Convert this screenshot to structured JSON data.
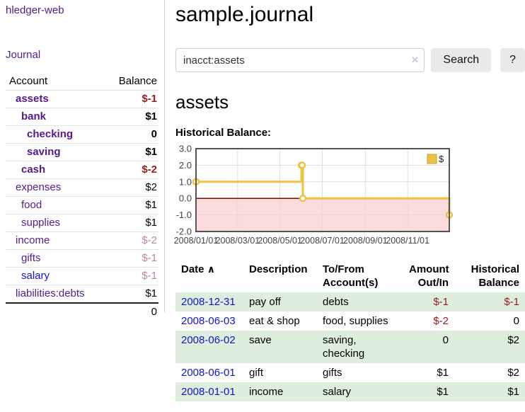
{
  "sidebar": {
    "app_title": "hledger-web",
    "journal_link": "Journal",
    "accounts": {
      "header_account": "Account",
      "header_balance": "Balance",
      "rows": [
        {
          "name": "assets",
          "indent": 1,
          "bold": true,
          "balance": "$-1",
          "neg": "strong"
        },
        {
          "name": "bank",
          "indent": 2,
          "bold": true,
          "balance": "$1",
          "neg": "none"
        },
        {
          "name": "checking",
          "indent": 3,
          "bold": true,
          "balance": "0",
          "neg": "none"
        },
        {
          "name": "saving",
          "indent": 3,
          "bold": true,
          "balance": "$1",
          "neg": "none"
        },
        {
          "name": "cash",
          "indent": 2,
          "bold": true,
          "balance": "$-2",
          "neg": "strong"
        },
        {
          "name": "expenses",
          "indent": 1,
          "bold": false,
          "balance": "$2",
          "neg": "none"
        },
        {
          "name": "food",
          "indent": 2,
          "bold": false,
          "balance": "$1",
          "neg": "none"
        },
        {
          "name": "supplies",
          "indent": 2,
          "bold": false,
          "balance": "$1",
          "neg": "none"
        },
        {
          "name": "income",
          "indent": 1,
          "bold": false,
          "balance": "$-2",
          "neg": "faded"
        },
        {
          "name": "gifts",
          "indent": 2,
          "bold": false,
          "balance": "$-1",
          "neg": "faded"
        },
        {
          "name": "salary",
          "indent": 2,
          "bold": false,
          "balance": "$-1",
          "neg": "faded",
          "link_color": "blue"
        },
        {
          "name": "liabilities:debts",
          "indent": 1,
          "bold": false,
          "balance": "$1",
          "neg": "none"
        }
      ],
      "total": "0"
    }
  },
  "main": {
    "title": "sample.journal",
    "search": {
      "value": "inacct:assets",
      "clear_icon": "×",
      "search_button": "Search",
      "help_button": "?"
    },
    "heading": "assets",
    "chart_title": "Historical Balance:"
  },
  "chart_data": {
    "type": "line",
    "step": true,
    "title": "Historical Balance",
    "series": [
      {
        "name": "$",
        "color": "#edc240",
        "points": [
          [
            "2008-01-01",
            1
          ],
          [
            "2008-06-01",
            2
          ],
          [
            "2008-06-02",
            2
          ],
          [
            "2008-06-03",
            0
          ],
          [
            "2008-12-31",
            -1
          ]
        ]
      }
    ],
    "xlim": [
      "2008-01-01",
      "2008-12-31"
    ],
    "ylim": [
      -2,
      3
    ],
    "yticks": [
      3.0,
      2.0,
      1.0,
      0.0,
      -1.0,
      -2.0
    ],
    "xticks": [
      "2008/01/01",
      "2008/03/01",
      "2008/05/01",
      "2008/07/01",
      "2008/09/01",
      "2008/11/01"
    ],
    "legend": {
      "label": "$",
      "position": "top-right"
    },
    "grid": true,
    "negative_fill": "#fbdbdb",
    "zero_line_color": "#8b0000",
    "border_color": "#545454"
  },
  "register": {
    "headers": {
      "date": "Date",
      "sort_icon": "∧",
      "description": "Description",
      "accounts": "To/From Account(s)",
      "amount": "Amount Out/In",
      "balance": "Historical Balance"
    },
    "rows": [
      {
        "date": "2008-12-31",
        "description": "pay off",
        "accounts": "debts",
        "amount": "$-1",
        "amount_neg": true,
        "balance": "$-1",
        "balance_neg": true
      },
      {
        "date": "2008-06-03",
        "description": "eat & shop",
        "accounts": "food, supplies",
        "amount": "$-2",
        "amount_neg": true,
        "balance": "0",
        "balance_neg": false
      },
      {
        "date": "2008-06-02",
        "description": "save",
        "accounts": "saving, checking",
        "amount": "0",
        "amount_neg": false,
        "balance": "$2",
        "balance_neg": false
      },
      {
        "date": "2008-06-01",
        "description": "gift",
        "accounts": "gifts",
        "amount": "$1",
        "amount_neg": false,
        "balance": "$2",
        "balance_neg": false
      },
      {
        "date": "2008-01-01",
        "description": "income",
        "accounts": "salary",
        "amount": "$1",
        "amount_neg": false,
        "balance": "$1",
        "balance_neg": false
      }
    ]
  },
  "colors": {
    "link_purple": "#551a8b",
    "link_blue": "#1414cc",
    "negative_strong": "#951d1d",
    "negative_faded": "#bb8888",
    "row_stripe_green": "#ddeedd",
    "chart_line": "#edc240",
    "chart_negative_fill": "#fbdbdb",
    "chart_zero_line": "#8b0000"
  }
}
